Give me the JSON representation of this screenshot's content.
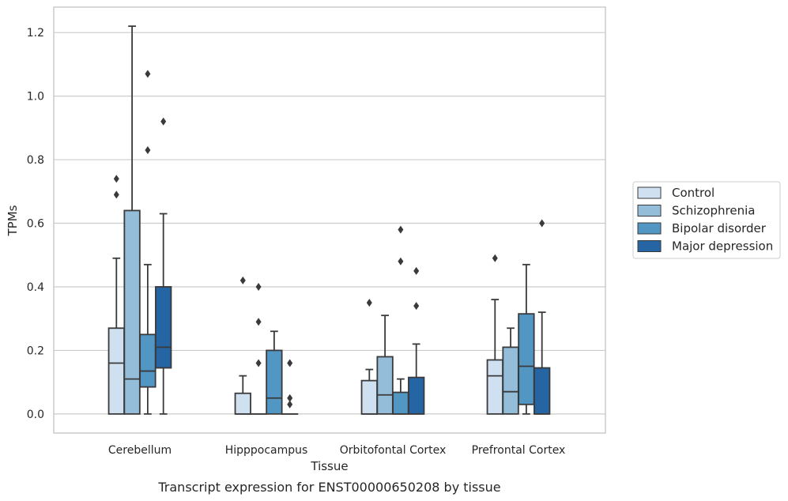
{
  "chart_data": {
    "type": "box",
    "xlabel": "Tissue",
    "ylabel": "TPMs",
    "caption": "Transcript expression for ENST00000650208 by tissue",
    "ylim": [
      -0.06,
      1.28
    ],
    "yticks": [
      0.0,
      0.2,
      0.4,
      0.6,
      0.8,
      1.0,
      1.2
    ],
    "ytick_labels": [
      "0.0",
      "0.2",
      "0.4",
      "0.6",
      "0.8",
      "1.0",
      "1.2"
    ],
    "grid": "horizontal",
    "legend_position": "right",
    "categories": [
      "Cerebellum",
      "Hipppocampus",
      "Orbitofontal Cortex",
      "Prefrontal Cortex"
    ],
    "series": [
      {
        "name": "Control",
        "color": "#cfe0f0",
        "boxes": [
          {
            "whislo": 0.0,
            "q1": 0.0,
            "med": 0.16,
            "q3": 0.27,
            "whishi": 0.49,
            "fliers": [
              0.69,
              0.74
            ]
          },
          {
            "whislo": 0.0,
            "q1": 0.0,
            "med": 0.0,
            "q3": 0.065,
            "whishi": 0.12,
            "fliers": [
              0.42
            ]
          },
          {
            "whislo": 0.0,
            "q1": 0.0,
            "med": 0.0,
            "q3": 0.105,
            "whishi": 0.14,
            "fliers": [
              0.35
            ]
          },
          {
            "whislo": 0.0,
            "q1": 0.0,
            "med": 0.12,
            "q3": 0.17,
            "whishi": 0.36,
            "fliers": [
              0.49
            ]
          }
        ]
      },
      {
        "name": "Schizophrenia",
        "color": "#93bdd9",
        "boxes": [
          {
            "whislo": 0.0,
            "q1": 0.0,
            "med": 0.11,
            "q3": 0.64,
            "whishi": 1.22,
            "fliers": []
          },
          {
            "whislo": 0.0,
            "q1": 0.0,
            "med": 0.0,
            "q3": 0.0,
            "whishi": 0.0,
            "fliers": [
              0.16,
              0.29,
              0.4
            ]
          },
          {
            "whislo": 0.0,
            "q1": 0.0,
            "med": 0.06,
            "q3": 0.18,
            "whishi": 0.31,
            "fliers": []
          },
          {
            "whislo": 0.0,
            "q1": 0.0,
            "med": 0.07,
            "q3": 0.21,
            "whishi": 0.27,
            "fliers": []
          }
        ]
      },
      {
        "name": "Bipolar disorder",
        "color": "#5296c4",
        "boxes": [
          {
            "whislo": 0.0,
            "q1": 0.085,
            "med": 0.135,
            "q3": 0.25,
            "whishi": 0.47,
            "fliers": [
              0.83,
              1.07
            ]
          },
          {
            "whislo": 0.0,
            "q1": 0.0,
            "med": 0.05,
            "q3": 0.2,
            "whishi": 0.26,
            "fliers": []
          },
          {
            "whislo": 0.0,
            "q1": 0.0,
            "med": 0.0,
            "q3": 0.068,
            "whishi": 0.11,
            "fliers": [
              0.48,
              0.58
            ]
          },
          {
            "whislo": 0.0,
            "q1": 0.03,
            "med": 0.15,
            "q3": 0.315,
            "whishi": 0.47,
            "fliers": []
          }
        ]
      },
      {
        "name": "Major depression",
        "color": "#2565a3",
        "boxes": [
          {
            "whislo": 0.0,
            "q1": 0.145,
            "med": 0.21,
            "q3": 0.4,
            "whishi": 0.63,
            "fliers": [
              0.92
            ]
          },
          {
            "whislo": 0.0,
            "q1": 0.0,
            "med": 0.0,
            "q3": 0.0,
            "whishi": 0.0,
            "fliers": [
              0.03,
              0.05,
              0.16
            ]
          },
          {
            "whislo": 0.0,
            "q1": 0.0,
            "med": 0.0,
            "q3": 0.115,
            "whishi": 0.22,
            "fliers": [
              0.34,
              0.45
            ]
          },
          {
            "whislo": 0.0,
            "q1": 0.0,
            "med": 0.0,
            "q3": 0.145,
            "whishi": 0.32,
            "fliers": [
              0.6
            ]
          }
        ]
      }
    ]
  }
}
